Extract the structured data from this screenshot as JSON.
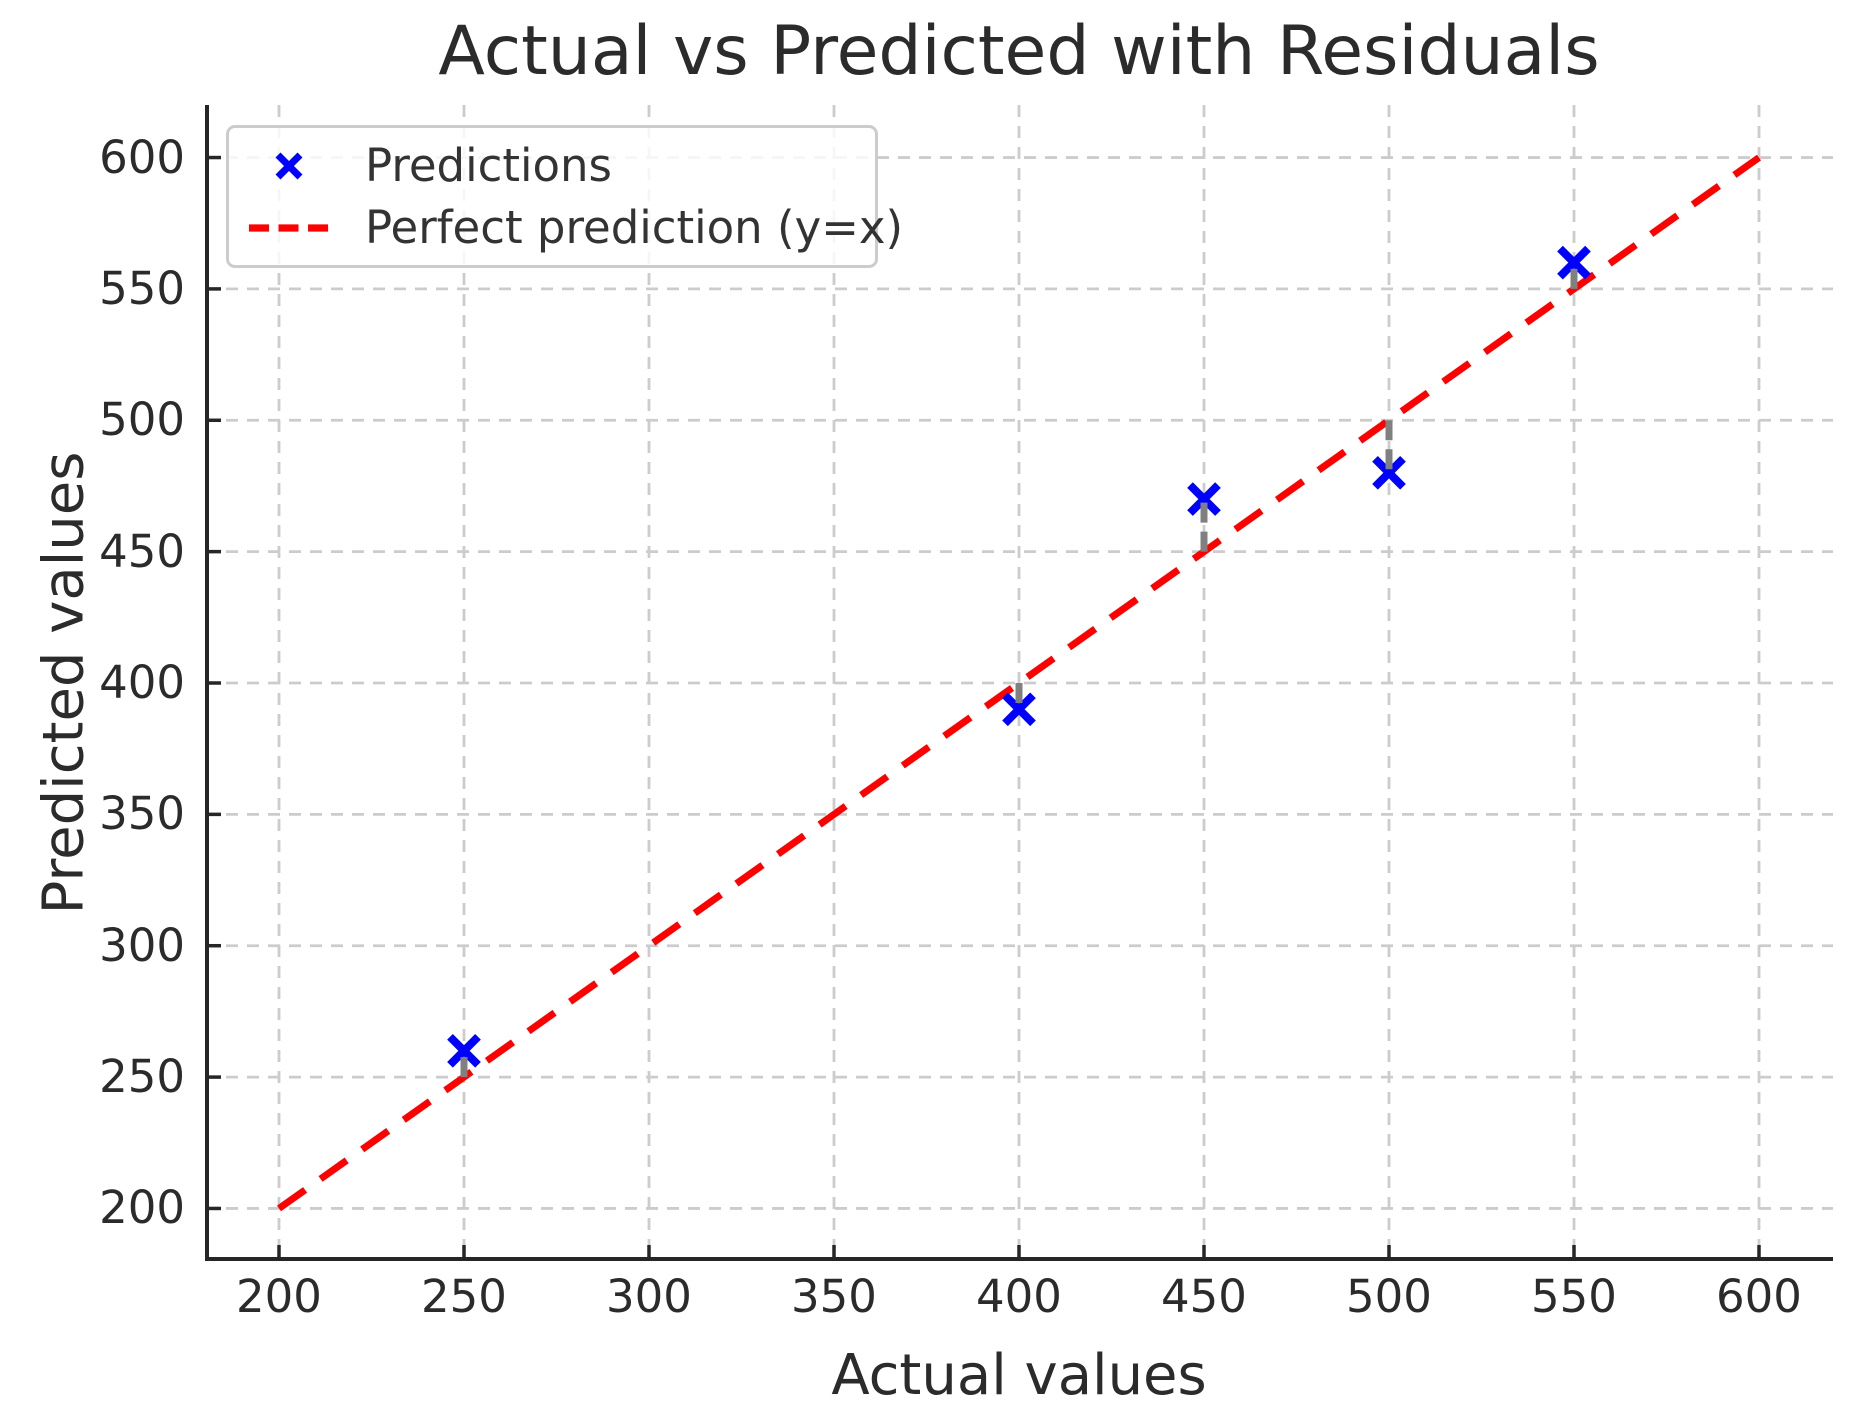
{
  "title": "Actual vs Predicted with Residuals",
  "legend": {
    "position": "upper left",
    "items": [
      {
        "label": "Predictions",
        "marker": "x",
        "color": "#0000ff"
      },
      {
        "label": "Perfect prediction (y=x)",
        "marker": "dashed-line",
        "color": "#ff0000"
      }
    ]
  },
  "chart_data": {
    "type": "scatter",
    "title": "Actual vs Predicted with Residuals",
    "xlabel": "Actual values",
    "ylabel": "Predicted values",
    "xlim": [
      180,
      620
    ],
    "ylim": [
      180,
      620
    ],
    "x_ticks": [
      200,
      250,
      300,
      350,
      400,
      450,
      500,
      550,
      600
    ],
    "y_ticks": [
      200,
      250,
      300,
      350,
      400,
      450,
      500,
      550,
      600
    ],
    "grid": true,
    "grid_style": "dashed",
    "legend_position": "upper left",
    "series": [
      {
        "name": "Predictions",
        "type": "scatter",
        "marker": "x",
        "color": "#0000ff",
        "x": [
          250,
          400,
          450,
          500,
          550
        ],
        "y": [
          260,
          390,
          470,
          480,
          560
        ]
      },
      {
        "name": "Perfect prediction (y=x)",
        "type": "line",
        "style": "dashed",
        "color": "#ff0000",
        "x": [
          200,
          600
        ],
        "y": [
          200,
          600
        ]
      },
      {
        "name": "Residuals",
        "type": "segments",
        "style": "dashed",
        "color": "#808080",
        "segments": [
          {
            "x": 250,
            "y_from": 250,
            "y_to": 260
          },
          {
            "x": 400,
            "y_from": 400,
            "y_to": 390
          },
          {
            "x": 450,
            "y_from": 450,
            "y_to": 470
          },
          {
            "x": 500,
            "y_from": 500,
            "y_to": 480
          },
          {
            "x": 550,
            "y_from": 550,
            "y_to": 560
          }
        ]
      }
    ]
  },
  "colors": {
    "background": "#ffffff",
    "grid": "#cccccc",
    "spine": "#262626",
    "tick": "#262626",
    "text": "#2b2b2b",
    "legend_text": "#333333",
    "legend_border": "#cccccc",
    "prediction_marker": "#0000ff",
    "perfect_line": "#ff0000",
    "residual_line": "#808080"
  }
}
